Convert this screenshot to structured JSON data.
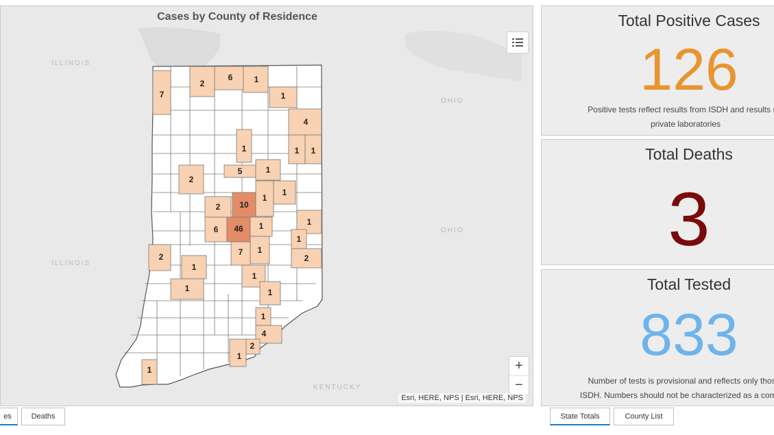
{
  "map": {
    "title": "Cases by County of Residence",
    "regions": [
      "ILLINOIS",
      "ILLINOIS",
      "OHIO",
      "OHIO",
      "KENTUCKY"
    ],
    "attribution": "Esri, HERE, NPS | Esri, HERE, NPS",
    "zoom_in": "+",
    "zoom_out": "−",
    "colors": {
      "low": "#f8d2b3",
      "mid": "#f0b48c",
      "high": "#e48c66",
      "none": "#ffffff",
      "border": "#7a7a7a"
    },
    "county_counts": [
      "7",
      "2",
      "6",
      "1",
      "1",
      "4",
      "1",
      "1",
      "1",
      "2",
      "5",
      "1",
      "1",
      "1",
      "2",
      "10",
      "6",
      "46",
      "1",
      "1",
      "1",
      "7",
      "1",
      "2",
      "1",
      "2",
      "1",
      "1",
      "1",
      "1",
      "4",
      "2",
      "1",
      "1"
    ]
  },
  "map_tabs": [
    "es",
    "Deaths"
  ],
  "stats": {
    "positive": {
      "title": "Total Positive Cases",
      "value": "126",
      "color": "#e8952f",
      "note_line1": "Positive tests reflect results from ISDH and results sul",
      "note_line2": "private laboratories"
    },
    "deaths": {
      "title": "Total Deaths",
      "value": "3",
      "color": "#7a0a0a"
    },
    "tested": {
      "title": "Total Tested",
      "value": "833",
      "color": "#6eb4ec",
      "note_line1": "Number of tests is provisional and reflects only those",
      "note_line2": "ISDH. Numbers should not be characterized as a compre"
    }
  },
  "stat_tabs": [
    "State Totals",
    "County List"
  ]
}
